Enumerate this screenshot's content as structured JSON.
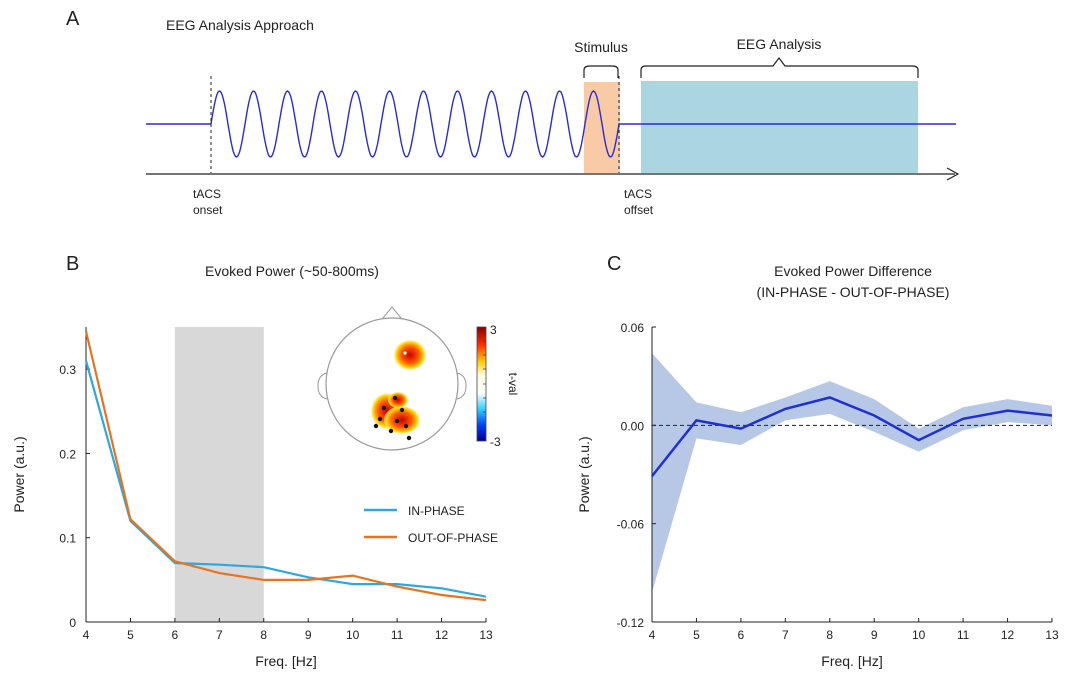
{
  "panels": {
    "a": {
      "letter": "A",
      "title": "EEG Analysis Approach",
      "stimulus_label": "Stimulus",
      "analysis_label": "EEG Analysis",
      "onset_label_1": "tACS",
      "onset_label_2": "onset",
      "offset_label_1": "tACS",
      "offset_label_2": "offset",
      "colors": {
        "wave": "#2b2bd6",
        "stimulus_fill": "#f8cba6",
        "analysis_fill": "#a9d6e0"
      }
    },
    "b": {
      "letter": "B"
    },
    "c": {
      "letter": "C"
    }
  },
  "chart_data": [
    {
      "type": "line",
      "title": "Evoked Power (~50-800ms)",
      "xlabel": "Freq. [Hz]",
      "ylabel": "Power (a.u.)",
      "x": [
        4,
        5,
        6,
        7,
        8,
        9,
        10,
        11,
        12,
        13
      ],
      "xlim": [
        4,
        13
      ],
      "ylim": [
        0,
        0.35
      ],
      "yticks": [
        "0",
        "0.1",
        "0.2",
        "0.3"
      ],
      "xticks": [
        "4",
        "5",
        "6",
        "7",
        "8",
        "9",
        "10",
        "11",
        "12",
        "13"
      ],
      "shaded_band": {
        "x_from": 6,
        "x_to": 8,
        "color": "#d8d8d8"
      },
      "legend_position": "right-middle",
      "series": [
        {
          "name": "IN-PHASE",
          "color": "#29a9e1",
          "values": [
            0.31,
            0.12,
            0.07,
            0.068,
            0.065,
            0.053,
            0.045,
            0.045,
            0.04,
            0.03
          ]
        },
        {
          "name": "OUT-OF-PHASE",
          "color": "#e8731f",
          "values": [
            0.345,
            0.122,
            0.072,
            0.058,
            0.05,
            0.05,
            0.055,
            0.042,
            0.032,
            0.026
          ]
        }
      ],
      "inset_topomap": {
        "colorbar_max": "3",
        "colorbar_min": "-3",
        "colorbar_label": "t-val"
      }
    },
    {
      "type": "line",
      "title_line1": "Evoked Power Difference",
      "title_line2": "(IN-PHASE - OUT-OF-PHASE)",
      "xlabel": "Freq. [Hz]",
      "ylabel": "Power (a.u.)",
      "x": [
        4,
        5,
        6,
        7,
        8,
        9,
        10,
        11,
        12,
        13
      ],
      "xlim": [
        4,
        13
      ],
      "ylim": [
        -0.12,
        0.06
      ],
      "yticks": [
        "0.06",
        "0.00",
        "-0.06",
        "-0.12"
      ],
      "ytick_values": [
        0.06,
        0.0,
        -0.06,
        -0.12
      ],
      "xticks": [
        "4",
        "5",
        "6",
        "7",
        "8",
        "9",
        "10",
        "11",
        "12",
        "13"
      ],
      "zero_line": "dashed",
      "series": [
        {
          "color": "#1f2fd8",
          "band_color": "#b7c8e6",
          "values": [
            -0.031,
            0.003,
            -0.002,
            0.01,
            0.017,
            0.006,
            -0.009,
            0.004,
            0.009,
            0.006
          ],
          "upper": [
            0.044,
            0.014,
            0.008,
            0.017,
            0.027,
            0.016,
            -0.002,
            0.011,
            0.016,
            0.012
          ],
          "lower": [
            -0.102,
            -0.008,
            -0.012,
            0.003,
            0.007,
            -0.004,
            -0.016,
            -0.003,
            0.002,
            0.0
          ]
        }
      ]
    }
  ]
}
